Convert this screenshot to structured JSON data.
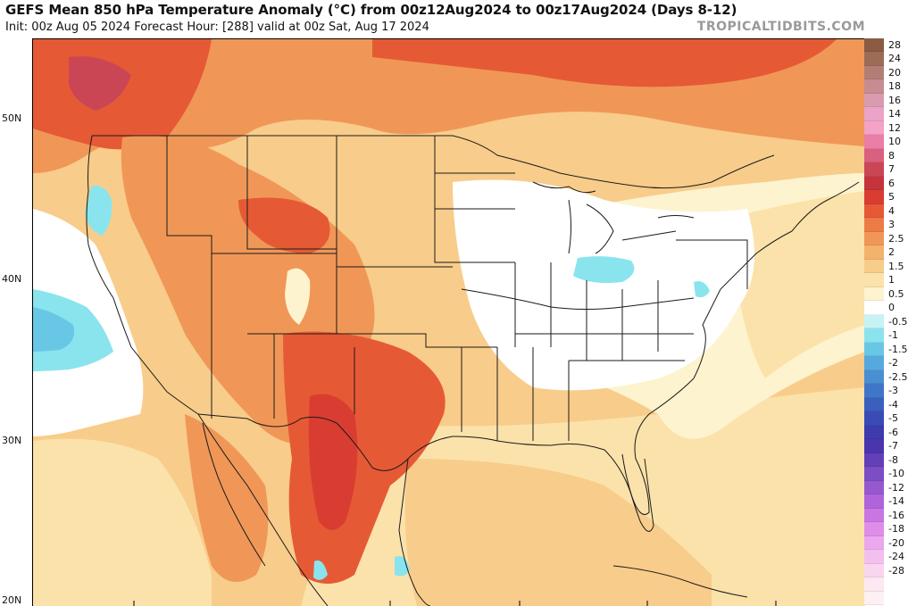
{
  "header": {
    "title": "GEFS Mean 850 hPa Temperature Anomaly (°C) from 00z12Aug2024 to 00z17Aug2024 (Days 8-12)",
    "subtitle": "Init: 00z Aug 05 2024   Forecast Hour: [288]   valid at 00z Sat, Aug 17 2024",
    "brand": "TROPICALTIDBITS.COM"
  },
  "map": {
    "lat_labels": [
      "50N",
      "40N",
      "30N",
      "20N"
    ]
  },
  "colorbar": {
    "levels": [
      {
        "label": "28",
        "color": "#8b5b43"
      },
      {
        "label": "24",
        "color": "#9c6c58"
      },
      {
        "label": "20",
        "color": "#b27d75"
      },
      {
        "label": "18",
        "color": "#c68c92"
      },
      {
        "label": "16",
        "color": "#d99bb0"
      },
      {
        "label": "14",
        "color": "#eba3c8"
      },
      {
        "label": "12",
        "color": "#f4a2c6"
      },
      {
        "label": "10",
        "color": "#ea7ea6"
      },
      {
        "label": "8",
        "color": "#d9607f"
      },
      {
        "label": "7",
        "color": "#cb4654"
      },
      {
        "label": "6",
        "color": "#c4343d"
      },
      {
        "label": "5",
        "color": "#d93d31"
      },
      {
        "label": "4",
        "color": "#e55a35"
      },
      {
        "label": "3",
        "color": "#ec7b46"
      },
      {
        "label": "2.5",
        "color": "#f09757"
      },
      {
        "label": "2",
        "color": "#f4b26c"
      },
      {
        "label": "1.5",
        "color": "#f8cc8a"
      },
      {
        "label": "1",
        "color": "#fbe2aa"
      },
      {
        "label": "0.5",
        "color": "#fdf3cf"
      },
      {
        "label": "0",
        "color": "#ffffff"
      },
      {
        "label": "-0.5",
        "color": "#c6f4f4"
      },
      {
        "label": "-1",
        "color": "#8ae4ee"
      },
      {
        "label": "-1.5",
        "color": "#69c7e6"
      },
      {
        "label": "-2",
        "color": "#56a9dc"
      },
      {
        "label": "-2.5",
        "color": "#4a8fd2"
      },
      {
        "label": "-3",
        "color": "#3f76c8"
      },
      {
        "label": "-4",
        "color": "#3a5fbe"
      },
      {
        "label": "-5",
        "color": "#3a4bb6"
      },
      {
        "label": "-6",
        "color": "#3d3bae"
      },
      {
        "label": "-7",
        "color": "#4a35ae"
      },
      {
        "label": "-8",
        "color": "#6240b8"
      },
      {
        "label": "-10",
        "color": "#7c4dc4"
      },
      {
        "label": "-12",
        "color": "#9658cf"
      },
      {
        "label": "-14",
        "color": "#b064da"
      },
      {
        "label": "-16",
        "color": "#c976e3"
      },
      {
        "label": "-18",
        "color": "#de8ee9"
      },
      {
        "label": "-20",
        "color": "#eba8ee"
      },
      {
        "label": "-24",
        "color": "#f3bfee"
      },
      {
        "label": "-28",
        "color": "#f9d6f0"
      },
      {
        "label": "",
        "color": "#fce8f0"
      },
      {
        "label": "",
        "color": "#fdf0f3"
      }
    ]
  }
}
